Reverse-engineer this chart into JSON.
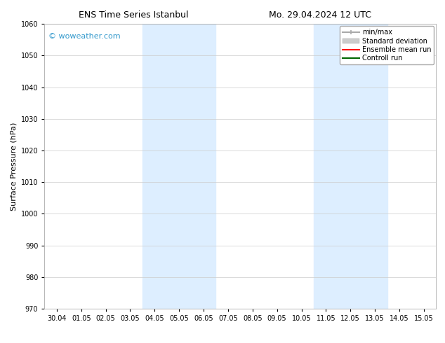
{
  "title_left": "ENS Time Series Istanbul",
  "title_right": "Mo. 29.04.2024 12 UTC",
  "ylabel": "Surface Pressure (hPa)",
  "ylim": [
    970,
    1060
  ],
  "yticks": [
    970,
    980,
    990,
    1000,
    1010,
    1020,
    1030,
    1040,
    1050,
    1060
  ],
  "x_labels": [
    "30.04",
    "01.05",
    "02.05",
    "03.05",
    "04.05",
    "05.05",
    "06.05",
    "07.05",
    "08.05",
    "09.05",
    "10.05",
    "11.05",
    "12.05",
    "13.05",
    "14.05",
    "15.05"
  ],
  "x_positions": [
    0,
    1,
    2,
    3,
    4,
    5,
    6,
    7,
    8,
    9,
    10,
    11,
    12,
    13,
    14,
    15
  ],
  "background_color": "#ffffff",
  "plot_bg_color": "#ffffff",
  "shaded_regions": [
    {
      "xmin": 3.5,
      "xmax": 6.5,
      "color": "#ddeeff"
    },
    {
      "xmin": 10.5,
      "xmax": 13.5,
      "color": "#ddeeff"
    }
  ],
  "watermark": "© woweather.com",
  "watermark_color": "#3399cc",
  "legend_items": [
    {
      "label": "min/max",
      "color": "#aaaaaa",
      "lw": 1.5
    },
    {
      "label": "Standard deviation",
      "color": "#cccccc",
      "lw": 6
    },
    {
      "label": "Ensemble mean run",
      "color": "#ff0000",
      "lw": 1.5
    },
    {
      "label": "Controll run",
      "color": "#006600",
      "lw": 1.5
    }
  ],
  "grid_color": "#cccccc",
  "tick_label_fontsize": 7,
  "axis_label_fontsize": 8,
  "title_fontsize": 9,
  "watermark_fontsize": 8,
  "legend_fontsize": 7
}
